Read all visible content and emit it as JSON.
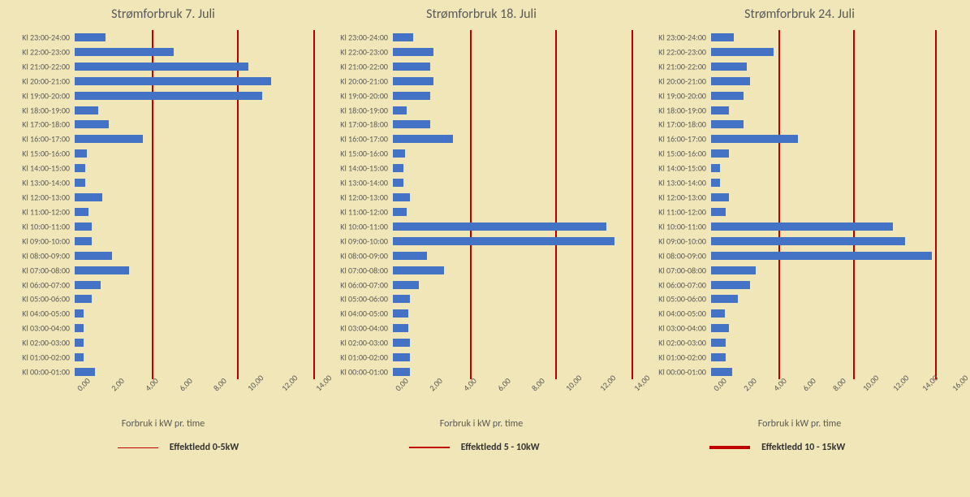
{
  "background_color": "#f0e6b8",
  "bar_color": "#4472c4",
  "refline_color": "#c00000",
  "text_color": "#595959",
  "title_fontsize": 16,
  "label_fontsize": 10,
  "subtitle_fontsize": 12,
  "categories": [
    "Kl 00:00-01:00",
    "Kl 01:00-02:00",
    "Kl 02:00-03:00",
    "Kl 03:00-04:00",
    "Kl 04:00-05:00",
    "Kl 05:00-06:00",
    "Kl 06:00-07:00",
    "Kl 07:00-08:00",
    "Kl 08:00-09:00",
    "Kl 09:00-10:00",
    "Kl 10:00-11:00",
    "Kl 11:00-12:00",
    "Kl 12:00-13:00",
    "Kl 13:00-14:00",
    "Kl 14:00-15:00",
    "Kl 15:00-16:00",
    "Kl 16:00-17:00",
    "Kl 17:00-18:00",
    "Kl 18:00-19:00",
    "Kl 19:00-20:00",
    "Kl 20:00-21:00",
    "Kl 21:00-22:00",
    "Kl 22:00-23:00",
    "Kl 23:00-24:00"
  ],
  "panels": [
    {
      "title": "Strømforbruk  7. Juli",
      "x_max": 14.0,
      "x_ticks": [
        "0,00",
        "2,00",
        "4,00",
        "6,00",
        "8,00",
        "10,00",
        "12,00",
        "14,00"
      ],
      "reflines": [
        4.5,
        9.5,
        14.0
      ],
      "values": [
        1.2,
        0.5,
        0.5,
        0.5,
        0.5,
        1.0,
        1.5,
        3.2,
        2.2,
        1.0,
        1.0,
        0.8,
        1.6,
        0.6,
        0.6,
        0.7,
        4.0,
        2.0,
        1.4,
        11.0,
        11.5,
        10.2,
        5.8,
        1.8
      ],
      "subtitle": "Forbruk i kW pr. time"
    },
    {
      "title": "Strømforbruk  18. Juli",
      "x_max": 14.0,
      "x_ticks": [
        "0,00",
        "2,00",
        "4,00",
        "6,00",
        "8,00",
        "10,00",
        "12,00",
        "14,00"
      ],
      "reflines": [
        4.5,
        9.5,
        14.0
      ],
      "values": [
        1.0,
        1.0,
        1.0,
        0.9,
        0.9,
        1.0,
        1.5,
        3.0,
        2.0,
        13.0,
        12.5,
        0.8,
        1.0,
        0.6,
        0.6,
        0.7,
        3.5,
        2.2,
        0.8,
        2.2,
        2.4,
        2.2,
        2.4,
        1.2
      ],
      "subtitle": "Forbruk i kW pr. time"
    },
    {
      "title": "Strømforbruk 24. Juli",
      "x_max": 16.0,
      "x_ticks": [
        "0,00",
        "2,00",
        "4,00",
        "6,00",
        "8,00",
        "10,00",
        "12,00",
        "14,00",
        "16,00"
      ],
      "reflines": [
        4.5,
        9.5,
        15.0
      ],
      "values": [
        1.4,
        1.0,
        1.0,
        1.2,
        0.9,
        1.8,
        2.6,
        3.0,
        14.8,
        13.0,
        12.2,
        1.0,
        1.2,
        0.6,
        0.6,
        1.2,
        5.8,
        2.2,
        1.2,
        2.2,
        2.6,
        2.4,
        4.2,
        1.5
      ],
      "subtitle": "Forbruk i kW pr. time"
    }
  ],
  "legends": [
    {
      "label": "Effektledd 0-5kW",
      "line_width": 1,
      "line_length": 50
    },
    {
      "label": "Effektledd 5 - 10kW",
      "line_width": 2,
      "line_length": 50
    },
    {
      "label": "Effektledd 10 - 15kW",
      "line_width": 4,
      "line_length": 50
    }
  ]
}
